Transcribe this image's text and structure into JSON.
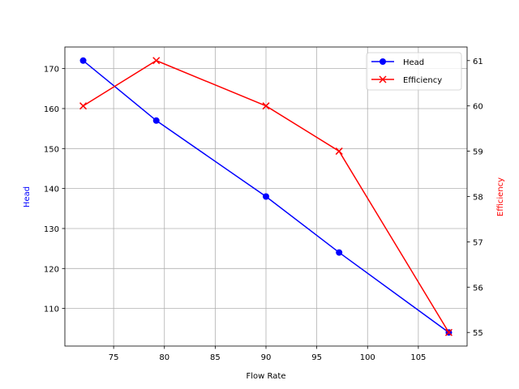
{
  "chart_data": {
    "type": "line",
    "xlabel": "Flow Rate",
    "ylabel_left": "Head",
    "ylabel_right": "Efficiency",
    "x": [
      72,
      79.2,
      90,
      97.2,
      108
    ],
    "xlim": [
      70.2,
      109.8
    ],
    "xticks": [
      75,
      80,
      85,
      90,
      95,
      100,
      105
    ],
    "grid": true,
    "legend_placement": "top-right",
    "series": [
      {
        "name": "Head",
        "axis": "left",
        "color": "#0000ff",
        "marker": "circle",
        "values": [
          172,
          157,
          138,
          124,
          104
        ]
      },
      {
        "name": "Efficiency",
        "axis": "right",
        "color": "#ff0000",
        "marker": "x",
        "values": [
          60,
          61,
          60,
          59,
          55
        ]
      }
    ],
    "ylim_left": [
      100.6,
      175.4
    ],
    "yticks_left": [
      110,
      120,
      130,
      140,
      150,
      160,
      170
    ],
    "ylim_right": [
      54.7,
      61.3
    ],
    "yticks_right": [
      55,
      56,
      57,
      58,
      59,
      60,
      61
    ],
    "left_label_color": "#0000ff",
    "right_label_color": "#ff0000"
  }
}
